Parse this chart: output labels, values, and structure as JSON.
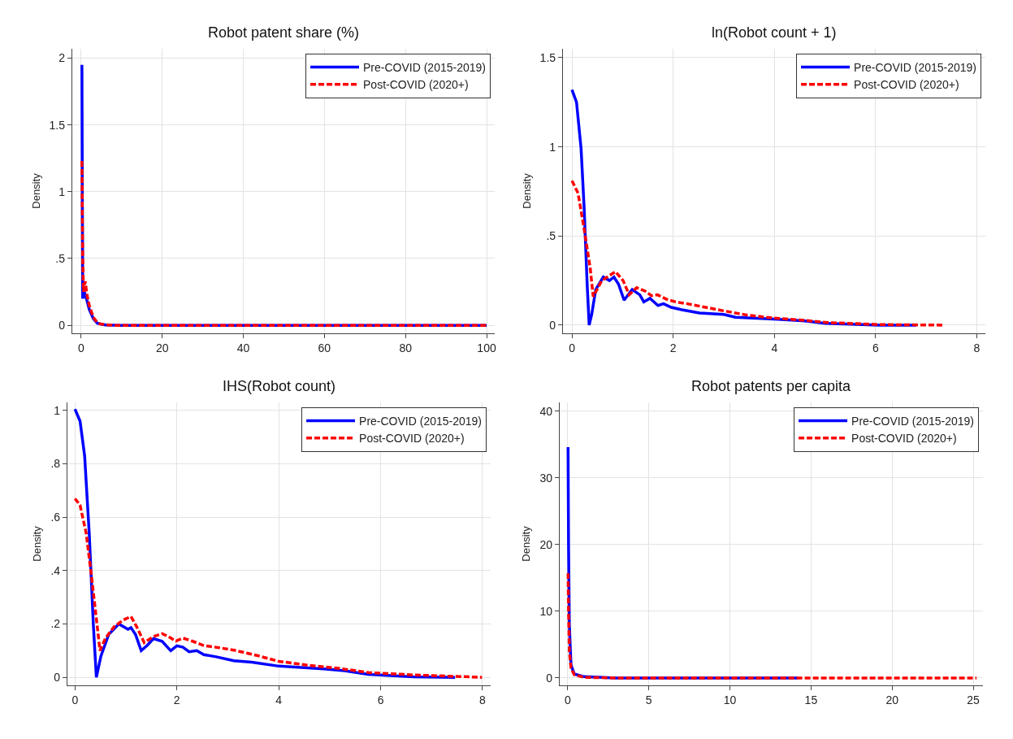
{
  "chart_data": [
    {
      "type": "line",
      "title": "Robot patent share (%)",
      "ylabel": "Density",
      "xlim": [
        -2.2,
        102
      ],
      "xticks": [
        0,
        20,
        40,
        60,
        80,
        100
      ],
      "ylim": [
        -0.06,
        2.07
      ],
      "yticks": [
        0,
        {
          "value": 0.5,
          "label": ".5"
        },
        1,
        {
          "value": 1.5,
          "label": "1.5"
        },
        2
      ],
      "grid": true,
      "legend": "top right",
      "series": [
        {
          "name": "Pre-COVID (2015-2019)",
          "color": "#0000ff",
          "line_style": "solid",
          "x": [
            0.2,
            0.3,
            0.4,
            0.8,
            1.5,
            2,
            3,
            4,
            6,
            10,
            100
          ],
          "values": [
            1.95,
            1.0,
            0.2,
            0.25,
            0.18,
            0.12,
            0.05,
            0.015,
            0.003,
            0,
            0
          ]
        },
        {
          "name": "Post-COVID (2020+)",
          "color": "#ff0000",
          "line_style": "dashed",
          "x": [
            0.2,
            0.4,
            0.6,
            1,
            1.5,
            2,
            3,
            4,
            5,
            8,
            100
          ],
          "values": [
            1.23,
            0.5,
            0.25,
            0.33,
            0.22,
            0.15,
            0.06,
            0.02,
            0.008,
            0,
            0
          ]
        }
      ]
    },
    {
      "type": "line",
      "title": "ln(Robot count + 1)",
      "ylabel": "Density",
      "xlim": [
        -0.18,
        8.17
      ],
      "xticks": [
        0,
        2,
        4,
        6,
        8
      ],
      "ylim": [
        -0.046,
        1.55
      ],
      "yticks": [
        0,
        {
          "value": 0.5,
          "label": ".5"
        },
        1,
        {
          "value": 1.5,
          "label": "1.5"
        }
      ],
      "grid": true,
      "legend": "top right",
      "series": [
        {
          "name": "Pre-COVID (2015-2019)",
          "color": "#0000ff",
          "line_style": "solid",
          "x": [
            0,
            0.09,
            0.18,
            0.24,
            0.3,
            0.34,
            0.39,
            0.47,
            0.62,
            0.74,
            0.83,
            0.92,
            1.03,
            1.19,
            1.34,
            1.42,
            1.54,
            1.7,
            1.81,
            1.96,
            2.17,
            2.52,
            3.0,
            3.23,
            4.0,
            4.6,
            5.0,
            6.08,
            6.8
          ],
          "values": [
            1.32,
            1.25,
            0.99,
            0.66,
            0.23,
            0,
            0.06,
            0.2,
            0.27,
            0.25,
            0.27,
            0.23,
            0.14,
            0.2,
            0.17,
            0.13,
            0.15,
            0.11,
            0.12,
            0.1,
            0.086,
            0.068,
            0.06,
            0.044,
            0.034,
            0.024,
            0.01,
            0,
            0
          ]
        },
        {
          "name": "Post-COVID (2020+)",
          "color": "#ff0000",
          "line_style": "dashed",
          "x": [
            0,
            0.12,
            0.24,
            0.36,
            0.42,
            0.59,
            0.86,
            1.01,
            1.13,
            1.28,
            1.45,
            1.57,
            1.69,
            1.87,
            2.05,
            2.28,
            2.64,
            3.0,
            3.47,
            4.0,
            4.6,
            5.07,
            6.08,
            7.36
          ],
          "values": [
            0.81,
            0.74,
            0.54,
            0.32,
            0.16,
            0.25,
            0.3,
            0.25,
            0.17,
            0.21,
            0.19,
            0.165,
            0.17,
            0.145,
            0.13,
            0.12,
            0.1,
            0.08,
            0.056,
            0.039,
            0.027,
            0.014,
            0.003,
            0
          ]
        }
      ]
    },
    {
      "type": "line",
      "title": "IHS(Robot count)",
      "ylabel": "Density",
      "xlim": [
        -0.15,
        8.16
      ],
      "xticks": [
        0,
        2,
        4,
        6,
        8
      ],
      "ylim": [
        -0.03,
        1.03
      ],
      "yticks": [
        0,
        {
          "value": 0.2,
          "label": ".2"
        },
        {
          "value": 0.4,
          "label": ".4"
        },
        {
          "value": 0.6,
          "label": ".6"
        },
        {
          "value": 0.8,
          "label": ".8"
        },
        1
      ],
      "grid": true,
      "legend": "top right",
      "series": [
        {
          "name": "Pre-COVID (2015-2019)",
          "color": "#0000ff",
          "line_style": "solid",
          "x": [
            0,
            0.1,
            0.19,
            0.28,
            0.36,
            0.42,
            0.51,
            0.66,
            0.86,
            0.95,
            1.04,
            1.1,
            1.19,
            1.3,
            1.42,
            1.54,
            1.71,
            1.88,
            2.0,
            2.12,
            2.24,
            2.39,
            2.53,
            2.77,
            3.12,
            3.47,
            4.0,
            4.88,
            5.29,
            5.76,
            6.64,
            7.46
          ],
          "values": [
            1.005,
            0.96,
            0.83,
            0.54,
            0.2,
            0,
            0.08,
            0.16,
            0.2,
            0.19,
            0.18,
            0.186,
            0.16,
            0.1,
            0.12,
            0.145,
            0.135,
            0.1,
            0.118,
            0.113,
            0.096,
            0.1,
            0.085,
            0.077,
            0.062,
            0.057,
            0.042,
            0.032,
            0.025,
            0.011,
            0.002,
            0
          ]
        },
        {
          "name": "Post-COVID (2020+)",
          "color": "#ff0000",
          "line_style": "dashed",
          "x": [
            0,
            0.1,
            0.22,
            0.33,
            0.45,
            0.49,
            0.6,
            0.77,
            0.95,
            1.1,
            1.21,
            1.36,
            1.54,
            1.71,
            1.83,
            1.98,
            2.12,
            2.3,
            2.53,
            2.83,
            3.12,
            3.59,
            4.0,
            4.59,
            5.17,
            5.76,
            6.64,
            7.99
          ],
          "values": [
            0.67,
            0.645,
            0.54,
            0.37,
            0.17,
            0.1,
            0.147,
            0.19,
            0.215,
            0.228,
            0.19,
            0.13,
            0.153,
            0.164,
            0.153,
            0.136,
            0.147,
            0.136,
            0.119,
            0.111,
            0.102,
            0.081,
            0.06,
            0.045,
            0.034,
            0.018,
            0.009,
            0
          ]
        }
      ]
    },
    {
      "type": "line",
      "title": "Robot patents per capita",
      "ylabel": "Density",
      "xlim": [
        -0.5,
        25.6
      ],
      "xticks": [
        0,
        5,
        10,
        15,
        20,
        25
      ],
      "ylim": [
        -1.1,
        41.3
      ],
      "yticks": [
        0,
        10,
        20,
        30,
        40
      ],
      "grid": true,
      "legend": "top right",
      "series": [
        {
          "name": "Pre-COVID (2015-2019)",
          "color": "#0000ff",
          "line_style": "solid",
          "x": [
            0.02,
            0.05,
            0.1,
            0.2,
            0.4,
            1,
            3,
            14.2
          ],
          "values": [
            34.6,
            20,
            8,
            2,
            0.6,
            0.2,
            0,
            0
          ]
        },
        {
          "name": "Post-COVID (2020+)",
          "color": "#ff0000",
          "line_style": "dashed",
          "x": [
            0.02,
            0.05,
            0.1,
            0.2,
            0.4,
            1,
            3,
            25.2
          ],
          "values": [
            15.7,
            10,
            4,
            1.5,
            0.5,
            0.1,
            0,
            0
          ]
        }
      ]
    }
  ]
}
